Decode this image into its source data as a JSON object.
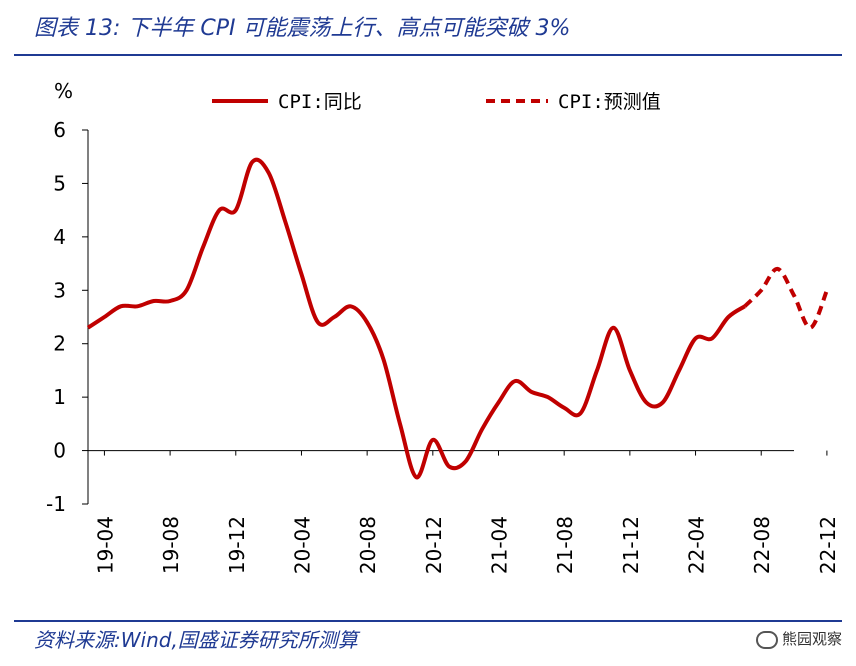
{
  "header": {
    "title": "图表 13:  下半年 CPI 可能震荡上行、高点可能突破 3%"
  },
  "footer": {
    "source": "资料来源:Wind,国盛证券研究所测算",
    "watermark": "熊园观察",
    "watermark_icon": "wechat-icon"
  },
  "chart_data": {
    "type": "line",
    "unit_label": "%",
    "categories": [
      "19-04",
      "19-08",
      "19-12",
      "20-04",
      "20-08",
      "20-12",
      "21-04",
      "21-08",
      "21-12",
      "22-04",
      "22-08",
      "22-12"
    ],
    "ylim": [
      -1,
      6
    ],
    "yticks": [
      -1,
      0,
      1,
      2,
      3,
      4,
      5,
      6
    ],
    "x_start": "2019-03",
    "legend_position": "top",
    "grid": false,
    "colors": {
      "series": "#c00000",
      "axis": "#000000"
    },
    "series": [
      {
        "name": "CPI:同比",
        "style": "solid",
        "x": [
          "2019-03",
          "2019-04",
          "2019-05",
          "2019-06",
          "2019-07",
          "2019-08",
          "2019-09",
          "2019-10",
          "2019-11",
          "2019-12",
          "2020-01",
          "2020-02",
          "2020-03",
          "2020-04",
          "2020-05",
          "2020-06",
          "2020-07",
          "2020-08",
          "2020-09",
          "2020-10",
          "2020-11",
          "2020-12",
          "2021-01",
          "2021-02",
          "2021-03",
          "2021-04",
          "2021-05",
          "2021-06",
          "2021-07",
          "2021-08",
          "2021-09",
          "2021-10",
          "2021-11",
          "2021-12",
          "2022-01",
          "2022-02",
          "2022-03",
          "2022-04",
          "2022-05",
          "2022-06",
          "2022-07"
        ],
        "values": [
          2.3,
          2.5,
          2.7,
          2.7,
          2.8,
          2.8,
          3.0,
          3.8,
          4.5,
          4.5,
          5.4,
          5.2,
          4.3,
          3.3,
          2.4,
          2.5,
          2.7,
          2.4,
          1.7,
          0.5,
          -0.5,
          0.2,
          -0.3,
          -0.2,
          0.4,
          0.9,
          1.3,
          1.1,
          1.0,
          0.8,
          0.7,
          1.5,
          2.3,
          1.5,
          0.9,
          0.9,
          1.5,
          2.1,
          2.1,
          2.5,
          2.7
        ]
      },
      {
        "name": "CPI:预测值",
        "style": "dashed",
        "x": [
          "2022-07",
          "2022-08",
          "2022-09",
          "2022-10",
          "2022-11",
          "2022-12"
        ],
        "values": [
          2.7,
          3.0,
          3.4,
          2.9,
          2.3,
          3.0
        ]
      }
    ]
  }
}
